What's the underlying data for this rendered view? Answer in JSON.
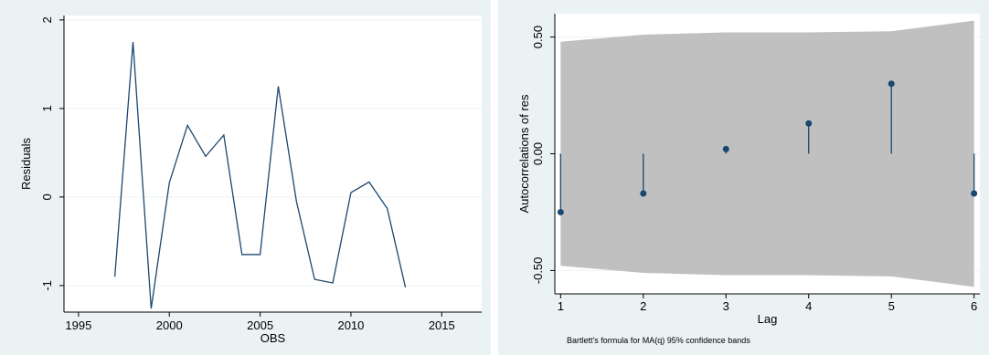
{
  "chart_data": [
    {
      "type": "line",
      "title": "",
      "xlabel": "OBS",
      "ylabel": "Residuals",
      "xlim": [
        1994.2,
        2017.2
      ],
      "ylim": [
        -1.3,
        2.05
      ],
      "x_ticks": [
        1995,
        2000,
        2005,
        2010,
        2015
      ],
      "x_tick_labels": [
        "1995",
        "2000",
        "2005",
        "2010",
        "2015"
      ],
      "y_ticks": [
        -1,
        0,
        1,
        2
      ],
      "y_tick_labels": [
        "-1",
        "0",
        "1",
        "2"
      ],
      "grid": true,
      "series": [
        {
          "x": [
            1997,
            1998,
            1999,
            2000,
            2001,
            2002,
            2003,
            2004,
            2005,
            2006,
            2007,
            2008,
            2009,
            2010,
            2011,
            2012,
            2013
          ],
          "values": [
            -0.9,
            1.75,
            -1.26,
            0.16,
            0.81,
            0.46,
            0.7,
            -0.65,
            -0.65,
            1.25,
            -0.05,
            -0.93,
            -0.97,
            0.05,
            0.17,
            -0.13,
            -1.02
          ]
        }
      ],
      "colors": {
        "line": "#1a476f",
        "grid": "#eaf2f3",
        "panel": "#eaf2f3",
        "plot": "#ffffff"
      }
    },
    {
      "type": "scatter",
      "title": "",
      "xlabel": "Lag",
      "ylabel": "Autocorrelations of res",
      "note": "Bartlett's formula for MA(q) 95% confidence bands",
      "xlim": [
        0.93,
        6.07
      ],
      "ylim": [
        -0.6,
        0.6
      ],
      "x_ticks": [
        1,
        2,
        3,
        4,
        5,
        6
      ],
      "x_tick_labels": [
        "1",
        "2",
        "3",
        "4",
        "5",
        "6"
      ],
      "y_ticks": [
        -0.5,
        0,
        0.5
      ],
      "y_tick_labels": [
        "-0.50",
        "0.00",
        "0.50"
      ],
      "grid": true,
      "autocorrelations": [
        {
          "lag": 1,
          "value": -0.25
        },
        {
          "lag": 2,
          "value": -0.17
        },
        {
          "lag": 3,
          "value": 0.02
        },
        {
          "lag": 4,
          "value": 0.13
        },
        {
          "lag": 5,
          "value": 0.3
        },
        {
          "lag": 6,
          "value": -0.17
        }
      ],
      "confidence_band": {
        "lag": [
          1,
          2,
          3,
          4,
          5,
          6
        ],
        "upper": [
          0.48,
          0.51,
          0.52,
          0.52,
          0.525,
          0.57
        ],
        "lower": [
          -0.48,
          -0.51,
          -0.52,
          -0.52,
          -0.525,
          -0.57
        ]
      },
      "colors": {
        "band": "#c0c0c0",
        "marker": "#1a476f",
        "spike": "#1a476f",
        "grid": "#eaf2f3",
        "panel": "#eaf2f3",
        "plot": "#ffffff"
      }
    }
  ]
}
